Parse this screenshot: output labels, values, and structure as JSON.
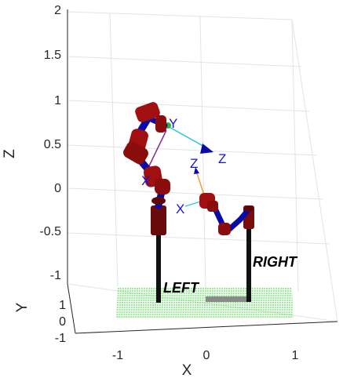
{
  "axes": {
    "z_ticks": [
      "2",
      "1.5",
      "1",
      "0.5",
      "0",
      "-0.5",
      "-1"
    ],
    "y_ticks": [
      "1",
      "0",
      "-1"
    ],
    "x_ticks": [
      "-1",
      "0",
      "1"
    ],
    "z_label": "Z",
    "y_label": "Y",
    "x_label": "X"
  },
  "frame_labels": {
    "upper_y": "Y",
    "upper_x": "X",
    "upper_z": "Z",
    "lower_z": "Z",
    "lower_x": "X"
  },
  "arm_labels": {
    "left": "LEFT",
    "right": "RIGHT"
  },
  "colors": {
    "link": "#0a0aa8",
    "joint": "#a01010",
    "joint_dark": "#5c0808",
    "pedestal": "#6b0a0a",
    "post": "#111111",
    "floor_grid": "#32d632",
    "gripper": "#8a8a8a",
    "axis_cyan": "#25c4d8",
    "axis_purple": "#8a2a9a",
    "axis_orange": "#e8a040",
    "frame_blue": "#1515d0"
  }
}
